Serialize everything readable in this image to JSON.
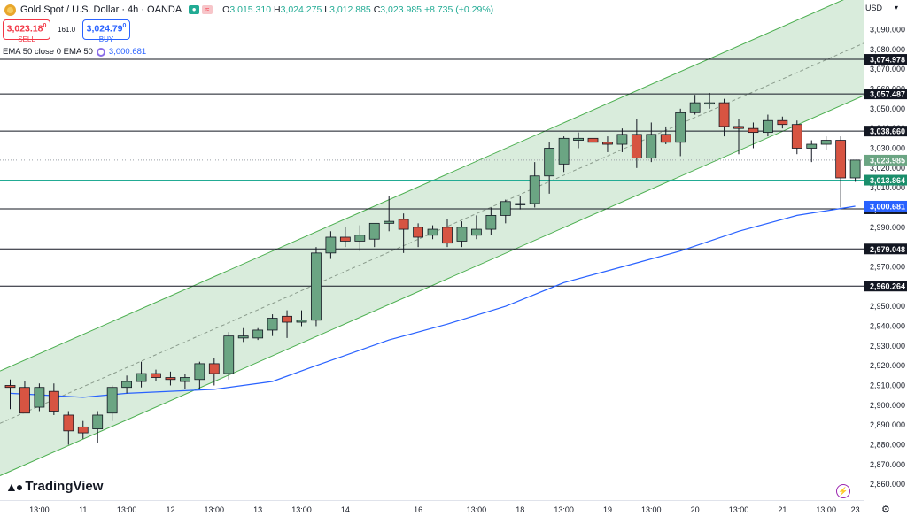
{
  "header": {
    "symbol_title": "Gold Spot / U.S. Dollar · 4h · OANDA",
    "ohlc": {
      "open_label": "O",
      "open": "3,015.310",
      "high_label": "H",
      "high": "3,024.275",
      "low_label": "L",
      "low": "3,012.885",
      "close_label": "C",
      "close": "3,023.985",
      "change": "+8.735 (+0.29%)"
    },
    "sell": {
      "price": "3,023.18",
      "sup": "0",
      "label": "SELL"
    },
    "buy": {
      "price": "3,024.79",
      "sup": "0",
      "label": "BUY"
    },
    "spread": "161.0",
    "indicator": {
      "label": "EMA 50 close 0 EMA 50",
      "value": "3,000.681"
    },
    "currency": "USD"
  },
  "branding": {
    "logo_text": "TradingView"
  },
  "colors": {
    "up": "#6ba583",
    "down": "#d75442",
    "ema": "#2962ff",
    "channel_fill": "#d5ead8",
    "channel_line": "#4caf50",
    "hline": "#131722",
    "bid_line": "#22ab94"
  },
  "chart_data": {
    "type": "candlestick",
    "ylim": [
      2852,
      3105
    ],
    "y_ticks": [
      2860,
      2870,
      2880,
      2890,
      2900,
      2910,
      2920,
      2930,
      2940,
      2950,
      2960,
      2970,
      2980,
      2990,
      3000,
      3010,
      3020,
      3030,
      3040,
      3050,
      3060,
      3070,
      3080,
      3090
    ],
    "y_tick_labels": [
      "2,860.000",
      "2,870.000",
      "2,880.000",
      "2,890.000",
      "2,900.000",
      "2,910.000",
      "2,920.000",
      "2,930.000",
      "2,940.000",
      "2,950.000",
      "2,960.000",
      "2,970.000",
      "2,980.000",
      "2,990.000",
      "3,000.000",
      "3,010.000",
      "3,020.000",
      "3,030.000",
      "3,040.000",
      "3,050.000",
      "3,060.000",
      "3,070.000",
      "3,080.000",
      "3,090.000"
    ],
    "x_labels": [
      {
        "i": 2,
        "t": "13:00"
      },
      {
        "i": 5,
        "t": "11"
      },
      {
        "i": 8,
        "t": "13:00"
      },
      {
        "i": 11,
        "t": "12"
      },
      {
        "i": 14,
        "t": "13:00"
      },
      {
        "i": 17,
        "t": "13"
      },
      {
        "i": 20,
        "t": "13:00"
      },
      {
        "i": 23,
        "t": "14"
      },
      {
        "i": 28,
        "t": "16"
      },
      {
        "i": 32,
        "t": "13:00"
      },
      {
        "i": 35,
        "t": "18"
      },
      {
        "i": 38,
        "t": "13:00"
      },
      {
        "i": 41,
        "t": "19"
      },
      {
        "i": 44,
        "t": "13:00"
      },
      {
        "i": 47,
        "t": "20"
      },
      {
        "i": 50,
        "t": "13:00"
      },
      {
        "i": 53,
        "t": "21"
      },
      {
        "i": 56,
        "t": "13:00"
      },
      {
        "i": 58,
        "t": "23"
      }
    ],
    "candles": [
      {
        "o": 2910,
        "h": 2913,
        "l": 2898,
        "c": 2909
      },
      {
        "o": 2909,
        "h": 2912,
        "l": 2896,
        "c": 2896
      },
      {
        "o": 2899,
        "h": 2911,
        "l": 2897,
        "c": 2909
      },
      {
        "o": 2907,
        "h": 2911,
        "l": 2895,
        "c": 2897
      },
      {
        "o": 2895,
        "h": 2897,
        "l": 2880,
        "c": 2887
      },
      {
        "o": 2889,
        "h": 2892,
        "l": 2883,
        "c": 2886
      },
      {
        "o": 2888,
        "h": 2897,
        "l": 2881,
        "c": 2895
      },
      {
        "o": 2896,
        "h": 2910,
        "l": 2892,
        "c": 2909
      },
      {
        "o": 2909,
        "h": 2915,
        "l": 2906,
        "c": 2912
      },
      {
        "o": 2912,
        "h": 2922,
        "l": 2909,
        "c": 2916
      },
      {
        "o": 2916,
        "h": 2918,
        "l": 2912,
        "c": 2914
      },
      {
        "o": 2914,
        "h": 2917,
        "l": 2910,
        "c": 2913
      },
      {
        "o": 2912,
        "h": 2916,
        "l": 2908,
        "c": 2914
      },
      {
        "o": 2913,
        "h": 2922,
        "l": 2908,
        "c": 2921
      },
      {
        "o": 2921,
        "h": 2924,
        "l": 2910,
        "c": 2916
      },
      {
        "o": 2916,
        "h": 2937,
        "l": 2913,
        "c": 2935
      },
      {
        "o": 2934,
        "h": 2939,
        "l": 2932,
        "c": 2935
      },
      {
        "o": 2934,
        "h": 2939,
        "l": 2933,
        "c": 2938
      },
      {
        "o": 2938,
        "h": 2946,
        "l": 2935,
        "c": 2944
      },
      {
        "o": 2945,
        "h": 2948,
        "l": 2934,
        "c": 2942
      },
      {
        "o": 2942,
        "h": 2948,
        "l": 2940,
        "c": 2943
      },
      {
        "o": 2943,
        "h": 2980,
        "l": 2940,
        "c": 2977
      },
      {
        "o": 2977,
        "h": 2988,
        "l": 2974,
        "c": 2985
      },
      {
        "o": 2985,
        "h": 2990,
        "l": 2980,
        "c": 2983
      },
      {
        "o": 2983,
        "h": 2991,
        "l": 2978,
        "c": 2986
      },
      {
        "o": 2984,
        "h": 2992,
        "l": 2980,
        "c": 2992
      },
      {
        "o": 2992,
        "h": 3006,
        "l": 2988,
        "c": 2993
      },
      {
        "o": 2994,
        "h": 2997,
        "l": 2977,
        "c": 2989
      },
      {
        "o": 2990,
        "h": 2992,
        "l": 2980,
        "c": 2985
      },
      {
        "o": 2986,
        "h": 2991,
        "l": 2984,
        "c": 2989
      },
      {
        "o": 2990,
        "h": 2994,
        "l": 2980,
        "c": 2982
      },
      {
        "o": 2983,
        "h": 2993,
        "l": 2980,
        "c": 2990
      },
      {
        "o": 2986,
        "h": 2996,
        "l": 2984,
        "c": 2989
      },
      {
        "o": 2989,
        "h": 3000,
        "l": 2986,
        "c": 2996
      },
      {
        "o": 2996,
        "h": 3004,
        "l": 2992,
        "c": 3003
      },
      {
        "o": 3002,
        "h": 3006,
        "l": 2999,
        "c": 3002
      },
      {
        "o": 3002,
        "h": 3023,
        "l": 3000,
        "c": 3016
      },
      {
        "o": 3016,
        "h": 3033,
        "l": 3007,
        "c": 3030
      },
      {
        "o": 3022,
        "h": 3036,
        "l": 3018,
        "c": 3035
      },
      {
        "o": 3034,
        "h": 3038,
        "l": 3030,
        "c": 3035
      },
      {
        "o": 3035,
        "h": 3038,
        "l": 3027,
        "c": 3033
      },
      {
        "o": 3033,
        "h": 3036,
        "l": 3028,
        "c": 3032
      },
      {
        "o": 3032,
        "h": 3040,
        "l": 3028,
        "c": 3037
      },
      {
        "o": 3037,
        "h": 3045,
        "l": 3020,
        "c": 3025
      },
      {
        "o": 3025,
        "h": 3043,
        "l": 3023,
        "c": 3037
      },
      {
        "o": 3037,
        "h": 3041,
        "l": 3032,
        "c": 3033
      },
      {
        "o": 3033,
        "h": 3050,
        "l": 3026,
        "c": 3048
      },
      {
        "o": 3048,
        "h": 3057,
        "l": 3047,
        "c": 3053
      },
      {
        "o": 3053,
        "h": 3058,
        "l": 3050,
        "c": 3053
      },
      {
        "o": 3053,
        "h": 3055,
        "l": 3036,
        "c": 3041
      },
      {
        "o": 3041,
        "h": 3045,
        "l": 3027,
        "c": 3040
      },
      {
        "o": 3040,
        "h": 3043,
        "l": 3030,
        "c": 3038
      },
      {
        "o": 3038,
        "h": 3047,
        "l": 3036,
        "c": 3044
      },
      {
        "o": 3044,
        "h": 3046,
        "l": 3040,
        "c": 3042
      },
      {
        "o": 3042,
        "h": 3044,
        "l": 3027,
        "c": 3030
      },
      {
        "o": 3030,
        "h": 3034,
        "l": 3023,
        "c": 3032
      },
      {
        "o": 3032,
        "h": 3036,
        "l": 3029,
        "c": 3034
      },
      {
        "o": 3034,
        "h": 3036,
        "l": 3000,
        "c": 3015
      },
      {
        "o": 3015,
        "h": 3024,
        "l": 3013,
        "c": 3024
      }
    ],
    "ema": [
      {
        "i": 0,
        "v": 2906
      },
      {
        "i": 5,
        "v": 2904
      },
      {
        "i": 8,
        "v": 2906
      },
      {
        "i": 14,
        "v": 2908
      },
      {
        "i": 18,
        "v": 2912
      },
      {
        "i": 21,
        "v": 2920
      },
      {
        "i": 26,
        "v": 2933
      },
      {
        "i": 30,
        "v": 2941
      },
      {
        "i": 34,
        "v": 2950
      },
      {
        "i": 38,
        "v": 2962
      },
      {
        "i": 42,
        "v": 2970
      },
      {
        "i": 46,
        "v": 2978
      },
      {
        "i": 50,
        "v": 2988
      },
      {
        "i": 54,
        "v": 2996
      },
      {
        "i": 58,
        "v": 3000.681
      }
    ],
    "channel": {
      "lower_start": {
        "i": 0,
        "v": 2862
      },
      "lower_end": {
        "i": 59,
        "v": 3058
      },
      "upper_start": {
        "i": 0,
        "v": 2915
      },
      "upper_end": {
        "i": 59,
        "v": 3111
      },
      "mid_start": {
        "i": 0,
        "v": 2888
      },
      "mid_end": {
        "i": 59,
        "v": 3085
      }
    },
    "hlines": [
      {
        "v": 3074.978,
        "label": "3,074.978"
      },
      {
        "v": 3057.487,
        "label": "3,057.487"
      },
      {
        "v": 3038.66,
        "label": "3,038.660"
      },
      {
        "v": 2999.337,
        "label": "2,999.337"
      },
      {
        "v": 2979.048,
        "label": "2,979.048"
      },
      {
        "v": 2960.264,
        "label": "2,960.264"
      }
    ],
    "last_price": {
      "v": 3023.985,
      "label": "3,023.985"
    },
    "bid_price": {
      "v": 3013.864,
      "label": "3,013.864"
    },
    "ema_price": {
      "v": 3000.681,
      "label": "3,000.681"
    }
  }
}
